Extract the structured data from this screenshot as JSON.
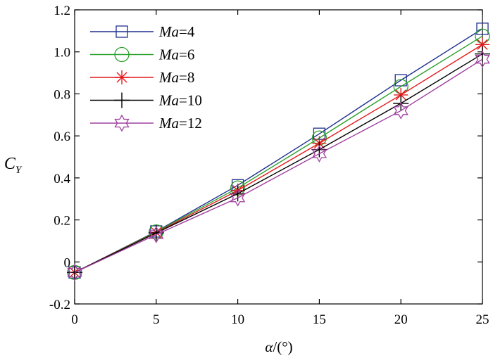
{
  "chart_data": {
    "type": "line",
    "title": "",
    "xlabel": "α/(°)",
    "xlabel_parts": {
      "symbol": "α",
      "unit": "/(°)"
    },
    "ylabel": "C_Y",
    "ylabel_parts": {
      "symbol": "C",
      "subscript": "Y"
    },
    "x": [
      0,
      5,
      10,
      15,
      20,
      25
    ],
    "xlim": [
      0,
      25
    ],
    "ylim": [
      -0.2,
      1.2
    ],
    "xticks": [
      "0",
      "5",
      "10",
      "15",
      "20",
      "25"
    ],
    "yticks": [
      "-0.2",
      "0",
      "0.2",
      "0.4",
      "0.6",
      "0.8",
      "1.0",
      "1.2"
    ],
    "ytick_values": [
      -0.2,
      0,
      0.2,
      0.4,
      0.6,
      0.8,
      1.0,
      1.2
    ],
    "grid": false,
    "legend_position": "top-left",
    "series": [
      {
        "name": "Ma=4",
        "name_var": "Ma",
        "name_value": "=4",
        "marker": "square",
        "color": "#1f2f8f",
        "values": [
          -0.05,
          0.145,
          0.365,
          0.61,
          0.865,
          1.11
        ]
      },
      {
        "name": "Ma=6",
        "name_var": "Ma",
        "name_value": "=6",
        "marker": "circle",
        "color": "#2ca02c",
        "values": [
          -0.05,
          0.143,
          0.352,
          0.59,
          0.835,
          1.075
        ]
      },
      {
        "name": "Ma=8",
        "name_var": "Ma",
        "name_value": "=8",
        "marker": "asterisk",
        "color": "#e41a1c",
        "values": [
          -0.05,
          0.14,
          0.34,
          0.565,
          0.795,
          1.035
        ]
      },
      {
        "name": "Ma=10",
        "name_var": "Ma",
        "name_value": "=10",
        "marker": "plus",
        "color": "#000000",
        "values": [
          -0.05,
          0.138,
          0.325,
          0.535,
          0.755,
          0.99
        ]
      },
      {
        "name": "Ma=12",
        "name_var": "Ma",
        "name_value": "=12",
        "marker": "hexagram",
        "color": "#a040a0",
        "values": [
          -0.05,
          0.13,
          0.305,
          0.515,
          0.72,
          0.965
        ]
      }
    ]
  }
}
